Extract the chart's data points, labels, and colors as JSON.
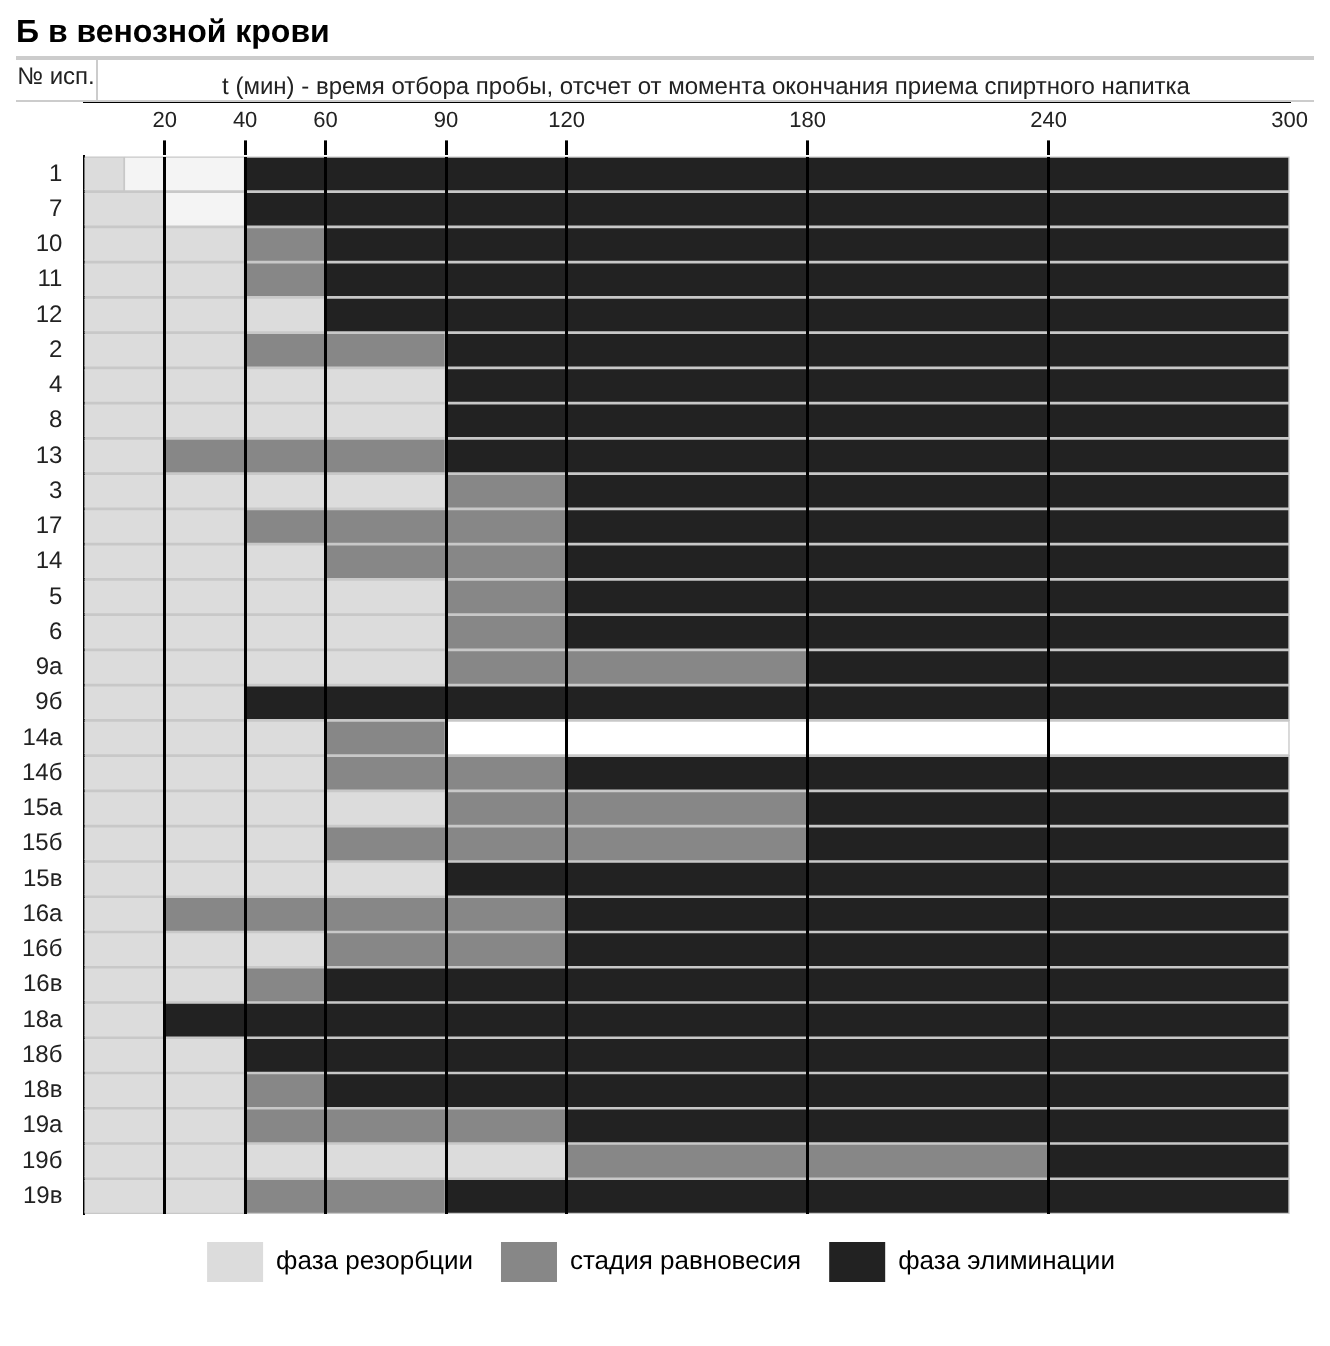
{
  "chart_data": {
    "type": "bar",
    "title": "Б  в венозной крови",
    "ylabel": "№ исп.",
    "xlabel": "t (мин) - время отбора пробы, отсчет от момента окончания приема спиртного напитка",
    "orientation": "horizontal",
    "stacked": true,
    "categories": [
      "1",
      "7",
      "10",
      "11",
      "12",
      "2",
      "4",
      "8",
      "13",
      "3",
      "17",
      "14",
      "5",
      "6",
      "9а",
      "9б",
      "14а",
      "14б",
      "15а",
      "15б",
      "15в",
      "16а",
      "16б",
      "16в",
      "18а",
      "18б",
      "18в",
      "19а",
      "19б",
      "19в"
    ],
    "series": [
      {
        "name": "фаза резорбции",
        "color": "#dcdcdc",
        "values": [
          10,
          20,
          40,
          40,
          60,
          40,
          90,
          90,
          20,
          90,
          40,
          60,
          90,
          90,
          90,
          40,
          60,
          60,
          90,
          60,
          90,
          20,
          60,
          40,
          20,
          40,
          40,
          40,
          120,
          40
        ]
      },
      {
        "color": "#f4f4f4",
        "values": [
          30,
          20,
          null,
          null,
          null,
          null,
          null,
          null,
          null,
          null,
          null,
          null,
          null,
          null,
          null,
          null,
          null,
          null,
          null,
          null,
          null,
          null,
          null,
          null,
          null,
          null,
          null,
          null,
          null,
          null
        ]
      },
      {
        "name": "стадия равновесия",
        "color": "#878787",
        "values": [
          null,
          null,
          20,
          20,
          null,
          50,
          null,
          null,
          70,
          30,
          80,
          60,
          30,
          30,
          90,
          null,
          30,
          60,
          90,
          120,
          null,
          100,
          60,
          20,
          null,
          null,
          20,
          80,
          120,
          50
        ]
      },
      {
        "name": "фаза элиминации",
        "color": "#222222",
        "values": [
          260,
          260,
          240,
          240,
          240,
          210,
          210,
          210,
          210,
          180,
          180,
          180,
          180,
          180,
          120,
          260,
          null,
          180,
          120,
          120,
          210,
          180,
          180,
          240,
          280,
          260,
          240,
          180,
          60,
          210
        ]
      },
      {
        "color": "#ffffff",
        "values": [
          null,
          null,
          null,
          null,
          null,
          null,
          null,
          null,
          null,
          null,
          null,
          null,
          null,
          null,
          null,
          null,
          210,
          null,
          null,
          null,
          null,
          null,
          null,
          null,
          null,
          null,
          null,
          null,
          null,
          null
        ]
      }
    ],
    "xlim": [
      0,
      300
    ],
    "xticks": [
      20,
      40,
      60,
      90,
      120,
      180,
      240,
      300
    ],
    "grid": "x",
    "legend": "bottom"
  }
}
